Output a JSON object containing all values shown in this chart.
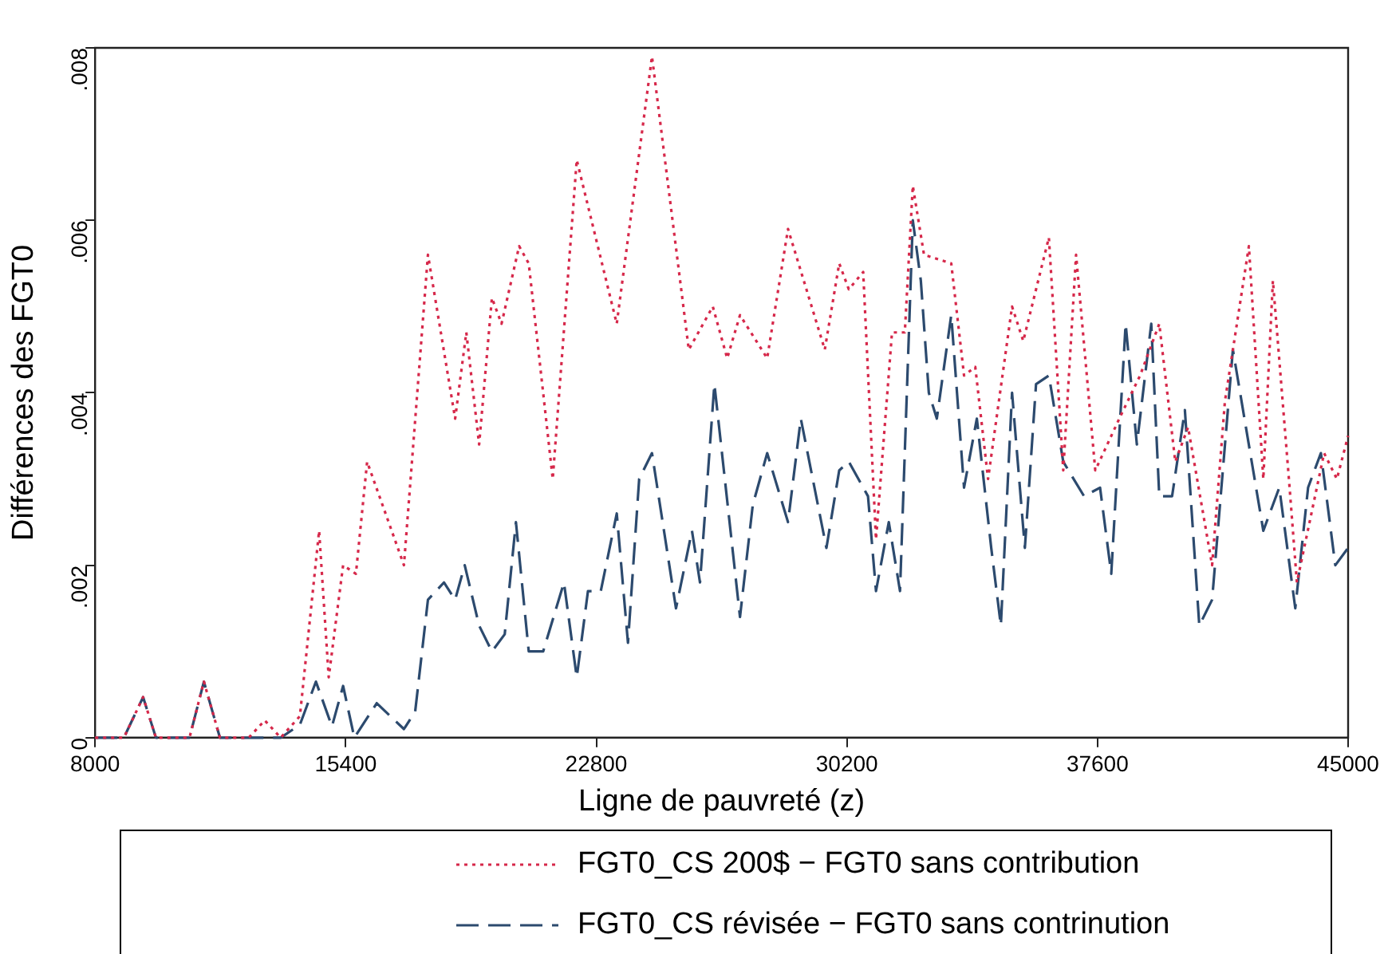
{
  "chart_data": {
    "type": "line",
    "xlabel": "Ligne de pauvreté (z)",
    "ylabel": "Différences des FGT0",
    "xlim": [
      8000,
      45000
    ],
    "xticks": [
      8000,
      15400,
      22800,
      30200,
      37600,
      45000
    ],
    "ylim": [
      0,
      0.008
    ],
    "yticks": [
      0,
      {
        "value": 0.002,
        "label": ".002"
      },
      {
        "value": 0.004,
        "label": ".004"
      },
      {
        "value": 0.006,
        "label": ".006"
      },
      {
        "value": 0.008,
        "label": ".008"
      }
    ],
    "grid": false,
    "legend": "bottom",
    "marker": "none",
    "series": [
      {
        "name": "FGT0_CS 200$ − FGT0 sans contribution",
        "color": "#d6284a",
        "line_style": "dotted",
        "x": [
          8000,
          8851,
          9418,
          9796,
          10788,
          11213,
          11686,
          12536,
          13009,
          13481,
          14048,
          14615,
          14899,
          15324,
          15702,
          16033,
          17120,
          17829,
          18632,
          18962,
          19340,
          19718,
          20002,
          20522,
          20805,
          21514,
          22223,
          23404,
          24444,
          25531,
          26240,
          26665,
          27043,
          27846,
          28461,
          29547,
          29973,
          30256,
          30681,
          31059,
          31532,
          31910,
          32146,
          32477,
          33281,
          33659,
          33990,
          34368,
          35077,
          35408,
          36164,
          36589,
          36967,
          37534,
          38243,
          38857,
          39424,
          39897,
          40275,
          40984,
          41362,
          42070,
          42496,
          42779,
          43252,
          43488,
          44291,
          44669,
          45000
        ],
        "values": [
          0,
          0,
          0.00047,
          0,
          0,
          0.00065,
          0,
          0,
          0.0002,
          0,
          0.00025,
          0.0024,
          0.0007,
          0.002,
          0.0019,
          0.0032,
          0.002,
          0.0056,
          0.0037,
          0.0047,
          0.0034,
          0.0051,
          0.0048,
          0.0057,
          0.0055,
          0.003,
          0.0067,
          0.0048,
          0.0079,
          0.0045,
          0.005,
          0.0044,
          0.0049,
          0.0044,
          0.0059,
          0.0045,
          0.0055,
          0.0052,
          0.0054,
          0.0023,
          0.0047,
          0.0047,
          0.0064,
          0.0056,
          0.0055,
          0.0042,
          0.0043,
          0.003,
          0.005,
          0.0046,
          0.0058,
          0.0031,
          0.0056,
          0.0031,
          0.0037,
          0.0042,
          0.0048,
          0.0032,
          0.0036,
          0.002,
          0.0039,
          0.0057,
          0.003,
          0.0053,
          0.003,
          0.0018,
          0.0033,
          0.003,
          0.0035
        ]
      },
      {
        "name": "FGT0_CS révisée − FGT0 sans contrinution",
        "color": "#2c4a6e",
        "line_style": "dashed",
        "x": [
          8000,
          8851,
          9418,
          9796,
          10788,
          11213,
          11686,
          13481,
          14048,
          14521,
          14994,
          15324,
          15655,
          16317,
          17120,
          17451,
          17829,
          18301,
          18632,
          18915,
          19340,
          19718,
          20096,
          20427,
          20805,
          21231,
          21845,
          22223,
          22554,
          22932,
          23404,
          23735,
          24066,
          24444,
          25153,
          25625,
          25862,
          26287,
          27043,
          27421,
          27846,
          28461,
          28839,
          29595,
          29973,
          30256,
          30823,
          31059,
          31437,
          31768,
          32146,
          32383,
          32619,
          32855,
          33281,
          33659,
          34037,
          34462,
          34746,
          35077,
          35455,
          35785,
          36164,
          36589,
          37203,
          37675,
          38006,
          38431,
          38762,
          39187,
          39424,
          39802,
          40180,
          40606,
          40984,
          41597,
          42496,
          42968,
          43440,
          43818,
          44196,
          44622,
          45000
        ],
        "values": [
          0,
          0,
          0.00047,
          0,
          0,
          0.00065,
          0,
          0,
          0.00015,
          0.00065,
          0.00013,
          0.0006,
          0,
          0.0004,
          0.0001,
          0.0003,
          0.0016,
          0.0018,
          0.0016,
          0.002,
          0.0013,
          0.001,
          0.0012,
          0.0025,
          0.001,
          0.001,
          0.0018,
          0.0007,
          0.0017,
          0.0017,
          0.0026,
          0.0011,
          0.003,
          0.0033,
          0.0015,
          0.0024,
          0.0018,
          0.0041,
          0.0014,
          0.0027,
          0.0033,
          0.0025,
          0.0037,
          0.0022,
          0.0031,
          0.0032,
          0.0028,
          0.0017,
          0.0025,
          0.0017,
          0.006,
          0.0053,
          0.004,
          0.0037,
          0.0049,
          0.0029,
          0.0037,
          0.0022,
          0.0013,
          0.004,
          0.0022,
          0.0041,
          0.0042,
          0.0032,
          0.0028,
          0.0029,
          0.0019,
          0.0048,
          0.0034,
          0.0048,
          0.0028,
          0.0028,
          0.0038,
          0.0013,
          0.0016,
          0.0045,
          0.0024,
          0.0029,
          0.0015,
          0.0029,
          0.0033,
          0.002,
          0.0022
        ]
      }
    ]
  }
}
